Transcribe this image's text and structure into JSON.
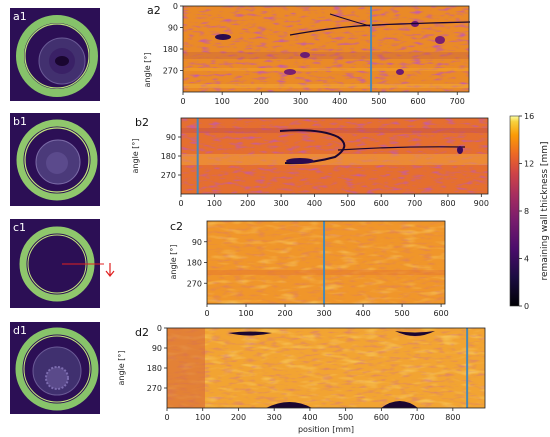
{
  "figure": {
    "cross_sections": [
      {
        "label": "a1"
      },
      {
        "label": "b1"
      },
      {
        "label": "c1"
      },
      {
        "label": "d1"
      }
    ],
    "colorbar": {
      "label": "remaining wall thickness  [mm]",
      "ticks": [
        "0",
        "4",
        "8",
        "12",
        "16"
      ]
    }
  },
  "chart_data": [
    {
      "type": "heatmap",
      "title": "a2",
      "xlabel": "",
      "ylabel": "angle [°]",
      "xlim": [
        0,
        730
      ],
      "ylim": [
        0,
        360
      ],
      "xticks": [
        0,
        100,
        200,
        300,
        400,
        500,
        600,
        700
      ],
      "yticks": [
        0,
        90,
        180,
        270
      ],
      "marker_x": 480,
      "features": [
        "longitudinal crack from about 250 mm to 720 mm near 60–80°",
        "dark corrosion pits scattered"
      ]
    },
    {
      "type": "heatmap",
      "title": "b2",
      "xlabel": "",
      "ylabel": "angle [°]",
      "xlim": [
        0,
        920
      ],
      "ylim": [
        0,
        360
      ],
      "xticks": [
        0,
        100,
        200,
        300,
        400,
        500,
        600,
        700,
        800,
        900
      ],
      "yticks": [
        90,
        180,
        270
      ],
      "marker_x": 50,
      "features": [
        "hook-shaped crack from about 380 mm to 830 mm near 100–200°"
      ]
    },
    {
      "type": "heatmap",
      "title": "c2",
      "xlabel": "",
      "ylabel": "angle [°]",
      "xlim": [
        0,
        610
      ],
      "ylim": [
        0,
        360
      ],
      "xticks": [
        0,
        100,
        200,
        300,
        400,
        500,
        600
      ],
      "yticks": [
        90,
        180,
        270
      ],
      "marker_x": 300,
      "features": [
        "uniform thickness, no defects"
      ]
    },
    {
      "type": "heatmap",
      "title": "d2",
      "xlabel": "position [mm]",
      "ylabel": "angle [°]",
      "xlim": [
        0,
        890
      ],
      "ylim": [
        0,
        360
      ],
      "xticks": [
        0,
        100,
        200,
        300,
        400,
        500,
        600,
        700,
        800
      ],
      "yticks": [
        0,
        90,
        180,
        270
      ],
      "marker_x": 840,
      "features": [
        "dark wall-loss lens shapes near 0° and 360° between 200–350 mm and 580–700 mm"
      ]
    }
  ]
}
